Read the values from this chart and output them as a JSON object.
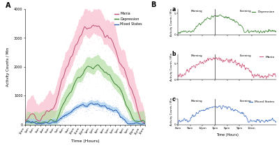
{
  "panel_A": {
    "title": "A",
    "xlabel": "Time (Hours)",
    "ylabel": "Activity Counts / Min",
    "ylim": [
      0,
      4000
    ],
    "yticks": [
      0,
      1000,
      2000,
      3000,
      4000
    ],
    "mania_color": "#f7b8c8",
    "mania_line_color": "#c05070",
    "mania_dot_color": "#e07090",
    "depression_color": "#b0dca0",
    "depression_line_color": "#3a8030",
    "depression_dot_color": "#60a850",
    "mixed_color": "#a8d0f0",
    "mixed_line_color": "#3060b0",
    "mixed_dot_color": "#5080d0",
    "n_points": 288
  },
  "panel_B": {
    "depression_color": "#3a8030",
    "mania_color": "#d06080",
    "mixed_color": "#4070c0",
    "xlabel": "Time (Hours)",
    "ylabel": "Activity Counts / Min",
    "xtick_labels": [
      "6am",
      "9am",
      "12pm",
      "3pm",
      "6pm",
      "9pm",
      "12am"
    ],
    "ylim_depression": [
      0,
      6
    ],
    "ylim_mania": [
      0,
      8
    ],
    "ylim_mixed": [
      0,
      5
    ],
    "n_points": 300,
    "vline_x": 15
  }
}
